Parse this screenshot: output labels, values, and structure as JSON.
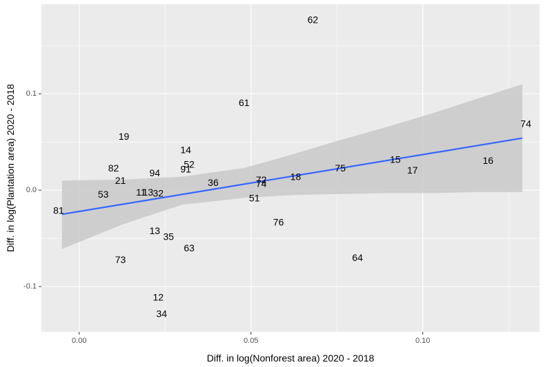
{
  "chart_data": {
    "type": "scatter",
    "title": "",
    "xlabel": "Diff. in log(Nonforest area) 2020 - 2018",
    "ylabel": "Diff. in log(Plantation area) 2020 - 2018",
    "xlim": [
      -0.011,
      0.134
    ],
    "ylim": [
      -0.147,
      0.193
    ],
    "x_ticks": [
      0.0,
      0.05,
      0.1
    ],
    "x_tick_labels": [
      "0.00",
      "0.05",
      "0.10"
    ],
    "y_ticks": [
      -0.1,
      0.0,
      0.1
    ],
    "y_tick_labels": [
      "-0.1",
      "0.0",
      "0.1"
    ],
    "grid": true,
    "legend": "none",
    "points": [
      {
        "label": "62",
        "x": 0.068,
        "y": 0.177
      },
      {
        "label": "61",
        "x": 0.048,
        "y": 0.091
      },
      {
        "label": "74",
        "x": 0.13,
        "y": 0.069
      },
      {
        "label": "19",
        "x": 0.013,
        "y": 0.056
      },
      {
        "label": "14",
        "x": 0.031,
        "y": 0.042
      },
      {
        "label": "16",
        "x": 0.119,
        "y": 0.031
      },
      {
        "label": "15",
        "x": 0.092,
        "y": 0.032
      },
      {
        "label": "52",
        "x": 0.032,
        "y": 0.027
      },
      {
        "label": "82",
        "x": 0.01,
        "y": 0.023
      },
      {
        "label": "91",
        "x": 0.031,
        "y": 0.022
      },
      {
        "label": "75",
        "x": 0.076,
        "y": 0.023
      },
      {
        "label": "17",
        "x": 0.097,
        "y": 0.021
      },
      {
        "label": "94",
        "x": 0.022,
        "y": 0.018
      },
      {
        "label": "18",
        "x": 0.063,
        "y": 0.014
      },
      {
        "label": "21",
        "x": 0.012,
        "y": 0.01
      },
      {
        "label": "72",
        "x": 0.053,
        "y": 0.011
      },
      {
        "label": "36",
        "x": 0.039,
        "y": 0.008
      },
      {
        "label": "74",
        "x": 0.053,
        "y": 0.007
      },
      {
        "label": "11",
        "x": 0.018,
        "y": -0.002
      },
      {
        "label": "13",
        "x": 0.02,
        "y": -0.002
      },
      {
        "label": "32",
        "x": 0.023,
        "y": -0.003
      },
      {
        "label": "53",
        "x": 0.007,
        "y": -0.004
      },
      {
        "label": "51",
        "x": 0.051,
        "y": -0.008
      },
      {
        "label": "81",
        "x": -0.006,
        "y": -0.021
      },
      {
        "label": "76",
        "x": 0.058,
        "y": -0.033
      },
      {
        "label": "13",
        "x": 0.022,
        "y": -0.042
      },
      {
        "label": "35",
        "x": 0.026,
        "y": -0.048
      },
      {
        "label": "63",
        "x": 0.032,
        "y": -0.06
      },
      {
        "label": "73",
        "x": 0.012,
        "y": -0.072
      },
      {
        "label": "64",
        "x": 0.081,
        "y": -0.07
      },
      {
        "label": "12",
        "x": 0.023,
        "y": -0.111
      },
      {
        "label": "34",
        "x": 0.024,
        "y": -0.128
      }
    ],
    "fit_line": {
      "x": [
        -0.005,
        0.129
      ],
      "y": [
        -0.025,
        0.054
      ]
    },
    "confidence_band": {
      "x": [
        -0.005,
        0.013,
        0.03,
        0.048,
        0.062,
        0.076,
        0.09,
        0.103,
        0.116,
        0.129
      ],
      "upper": [
        0.01,
        0.011,
        0.014,
        0.023,
        0.037,
        0.052,
        0.066,
        0.08,
        0.095,
        0.11
      ],
      "lower": [
        -0.061,
        -0.035,
        -0.015,
        -0.008,
        -0.005,
        -0.004,
        -0.003,
        -0.003,
        -0.002,
        -0.002
      ]
    },
    "colors": {
      "panel_bg": "#ebebeb",
      "grid_major": "#ffffff",
      "band": "#c9c9c9",
      "fit_line": "#3366ff",
      "labels": "#000000"
    }
  }
}
